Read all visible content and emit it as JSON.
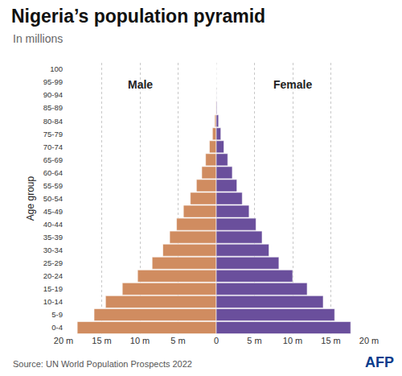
{
  "chart_data": {
    "type": "bar",
    "orientation": "horizontal",
    "title": "Nigeria’s population pyramid",
    "subtitle": "In millions",
    "y_label": "Age group",
    "source": "Source: UN World Population Prospects 2022",
    "logo": "AFP",
    "categories": [
      "0-4",
      "5-9",
      "10-14",
      "15-19",
      "20-24",
      "25-29",
      "30-34",
      "35-39",
      "40-44",
      "45-49",
      "50-54",
      "55-59",
      "60-64",
      "65-69",
      "70-74",
      "75-79",
      "80-84",
      "85-89",
      "90-94",
      "95-99",
      "100"
    ],
    "series": [
      {
        "name": "Male",
        "color": "#d08c60",
        "values": [
          -18.2,
          -16.0,
          -14.5,
          -12.3,
          -10.3,
          -8.4,
          -7.0,
          -6.1,
          -5.2,
          -4.3,
          -3.4,
          -2.6,
          -1.9,
          -1.4,
          -0.9,
          -0.5,
          -0.2,
          -0.05,
          -0.01,
          0,
          0
        ]
      },
      {
        "name": "Female",
        "color": "#6a4f9c",
        "values": [
          17.6,
          15.5,
          14.0,
          11.9,
          10.0,
          8.2,
          6.9,
          6.0,
          5.2,
          4.3,
          3.4,
          2.7,
          2.1,
          1.5,
          1.0,
          0.6,
          0.3,
          0.08,
          0.01,
          0,
          0
        ]
      }
    ],
    "xlim": [
      -20,
      20
    ],
    "xticks": [
      {
        "value": -20,
        "label": "20 m"
      },
      {
        "value": -15,
        "label": "15 m"
      },
      {
        "value": -10,
        "label": "10 m"
      },
      {
        "value": -5,
        "label": "5 m"
      },
      0,
      {
        "value": 5,
        "label": "5 m"
      },
      {
        "value": 10,
        "label": "10 m"
      },
      {
        "value": 15,
        "label": "15 m"
      },
      {
        "value": 20,
        "label": "20 m"
      }
    ],
    "grid": true
  }
}
